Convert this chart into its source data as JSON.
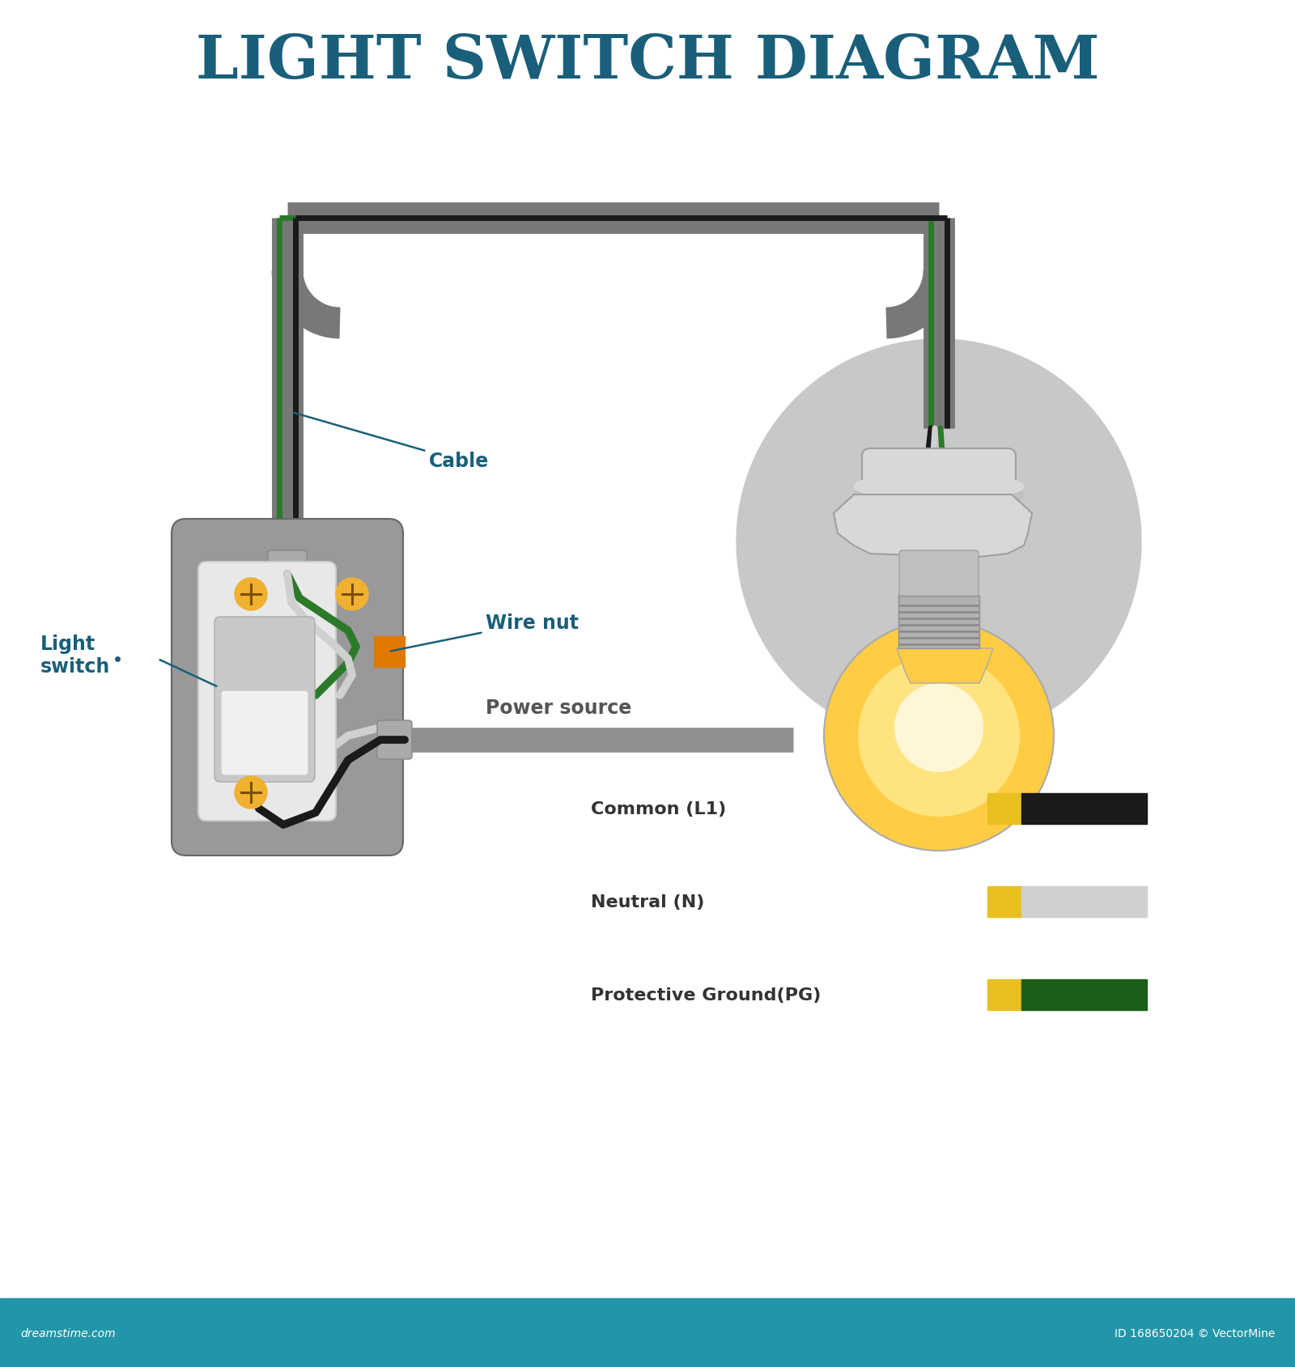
{
  "title": "LIGHT SWITCH DIAGRAM",
  "title_color": "#1a5f7a",
  "title_fontsize": 54,
  "bg_color": "#ffffff",
  "footer_color": "#2196a8",
  "footer_text_left": "dreamstime.com",
  "footer_text_right": "ID 168650204 © VectorMine",
  "label_color": "#1a5f7a",
  "wire_gray": "#787878",
  "wire_black": "#1a1a1a",
  "wire_white": "#d0d0d0",
  "wire_green": "#2a7a2a",
  "wire_yellow": "#e8c020",
  "wire_dark_green": "#1a5e1a",
  "box_gray": "#999999",
  "box_mid_gray": "#888888",
  "screw_orange": "#d4900a",
  "screw_bg": "#f0b030",
  "wire_nut_orange": "#e07800",
  "bulb_circle_gray": "#c8c8c8",
  "bulb_amber": "#ffcc44",
  "bulb_light_amber": "#ffe88a",
  "bulb_white_glow": "#fff9e0",
  "socket_light": "#d8d8d8",
  "socket_mid": "#c0c0c0",
  "socket_dark": "#a0a0a0",
  "conduit_color": "#787878",
  "conduit_lw": 28,
  "legend_common": "Common (L1)",
  "legend_neutral": "Neutral (N)",
  "legend_ground": "Protective Ground(PG)"
}
